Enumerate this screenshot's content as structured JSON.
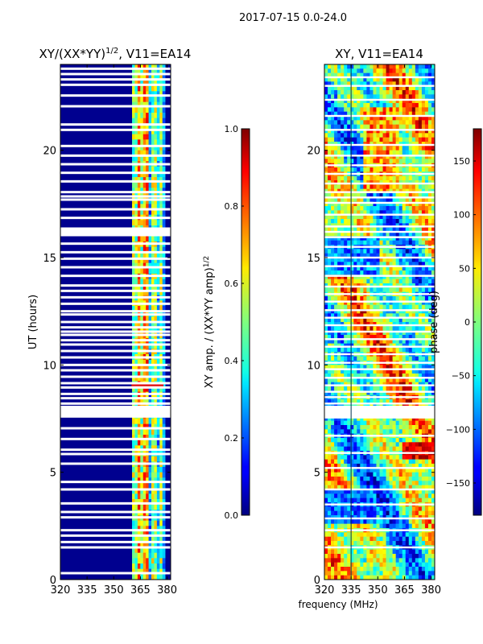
{
  "suptitle": "2017-07-15 0.0-24.0",
  "xlabel": "frequency (MHz)",
  "chart_data": [
    {
      "type": "heatmap",
      "id": "amp",
      "title_main": "XY/(XX*YY)",
      "title_sup": "1/2",
      "title_tail": ", V11=EA14",
      "ylabel": "UT (hours)",
      "xlim": [
        320,
        382
      ],
      "ylim": [
        0,
        24
      ],
      "xticks": [
        "320",
        "335",
        "350",
        "365",
        "380"
      ],
      "xtick_values": [
        320,
        335,
        350,
        365,
        380
      ],
      "yticks": [
        "0",
        "5",
        "10",
        "15",
        "20"
      ],
      "ytick_values": [
        0,
        5,
        10,
        15,
        20
      ],
      "colormap": "jet",
      "value_range": [
        0.0,
        1.0
      ],
      "colorbar": {
        "label_main": "XY amp. / (XX*YY amp)",
        "label_sup": "1/2",
        "ticks": [
          "0.0",
          "0.2",
          "0.4",
          "0.6",
          "0.8",
          "1.0"
        ],
        "tick_values": [
          0.0,
          0.2,
          0.4,
          0.6,
          0.8,
          1.0
        ]
      },
      "bright_channels_mhz": [
        362,
        364,
        366.5,
        368,
        371.5,
        374,
        377
      ],
      "flagged_ut_hours": [
        0.3,
        1.5,
        1.75,
        2.05,
        2.3,
        2.9,
        3.15,
        3.55,
        4.2,
        4.55,
        5.4,
        5.85,
        6.05,
        6.55,
        7.05,
        7.6,
        7.75,
        8.0,
        8.2,
        8.45,
        8.65,
        8.95,
        9.15,
        9.45,
        9.75,
        10.0,
        10.35,
        10.65,
        10.95,
        11.15,
        11.4,
        11.55,
        11.75,
        12.0,
        12.35,
        12.5,
        12.85,
        13.15,
        13.45,
        13.7,
        14.15,
        14.55,
        14.95,
        15.25,
        15.65,
        16.05,
        16.2,
        16.35,
        16.85,
        17.25,
        17.7,
        17.85,
        18.05,
        18.55,
        18.95,
        19.35,
        19.75,
        20.2,
        20.95,
        21.2,
        22.05,
        22.55,
        23.05,
        23.3,
        23.55,
        23.8
      ]
    },
    {
      "type": "heatmap",
      "id": "phase",
      "title_main": "XY, V11=EA14",
      "ylabel": "",
      "xlim": [
        320,
        382
      ],
      "ylim": [
        0,
        24
      ],
      "xticks": [
        "320",
        "335",
        "350",
        "365",
        "380"
      ],
      "xtick_values": [
        320,
        335,
        350,
        365,
        380
      ],
      "yticks": [
        "0",
        "5",
        "10",
        "15",
        "20"
      ],
      "ytick_values": [
        0,
        5,
        10,
        15,
        20
      ],
      "colormap": "jet",
      "value_range": [
        -180,
        180
      ],
      "colorbar": {
        "label_main": "phase (deg)",
        "ticks": [
          "−150",
          "−100",
          "−50",
          "0",
          "50",
          "100",
          "150"
        ],
        "tick_values": [
          -150,
          -100,
          -50,
          0,
          50,
          100,
          150
        ]
      },
      "flagged_ut_hours": [
        1.5,
        2.3,
        2.85,
        3.5,
        4.2,
        5.2,
        5.9,
        6.7,
        7.55,
        7.9,
        8.2,
        8.5,
        8.75,
        9.05,
        9.4,
        9.8,
        10.1,
        10.5,
        10.85,
        11.2,
        11.55,
        11.85,
        12.2,
        12.55,
        12.95,
        13.3,
        13.65,
        14.15,
        14.6,
        15.0,
        15.5,
        15.95,
        16.2,
        16.45,
        17.0,
        17.55,
        17.8,
        18.05,
        18.45,
        18.9,
        19.3,
        19.75,
        20.25,
        20.95,
        21.6,
        22.35,
        23.0,
        23.4
      ]
    }
  ]
}
